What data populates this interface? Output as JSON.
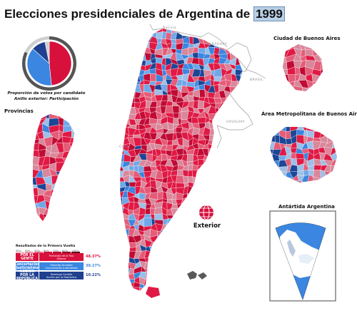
{
  "title": {
    "text": "Elecciones presidenciales de Argentina de",
    "year": "1999"
  },
  "pie": {
    "caption_line1": "Proporción de votos por candidato",
    "caption_line2": "Anillo exterior: Participación",
    "slices": [
      {
        "candidate": "Fernando de la Rúa",
        "share": 48.37,
        "color": "#d8103c"
      },
      {
        "candidate": "Eduardo Duhalde",
        "share": 38.27,
        "color": "#3a86e0"
      },
      {
        "candidate": "Domingo Cavallo",
        "share": 10.22,
        "color": "#1f3f8f"
      },
      {
        "candidate": "Otros",
        "share": 3.14,
        "color": "#d0d0d0"
      }
    ],
    "turnout_ring_color": "#555555",
    "turnout_gap_color": "#cfcfcf"
  },
  "labels": {
    "provincias": "Provincias",
    "caba": "Ciudad de Buenos Aires",
    "amba": "Área Metropolitana de Buenos Aires",
    "antartida": "Antártida Argentina",
    "exterior": "Exterior"
  },
  "countries": {
    "bolivia": "Bolivia",
    "paraguay": "PARAGUAY",
    "brasil": "BRASIL",
    "uruguay": "URUGUAY",
    "chile": "Chile"
  },
  "results": {
    "title": "Resultados de la Primera Vuelta",
    "scale": [
      "30%",
      "40%",
      "50%",
      "60%",
      "70%",
      "80%",
      "+90%"
    ],
    "rows": [
      {
        "party": "POR EL GENTE",
        "candidate": "Fernando de la Rúa",
        "subtitle": "Alianza",
        "pct": "48.37%",
        "color": "#d8103c",
        "pct_color": "#d8103c"
      },
      {
        "party": "Concertación Justicialista",
        "candidate": "Eduardo Duhalde",
        "subtitle": "Concertación Justicialista",
        "pct": "38.27%",
        "color": "#3a86e0",
        "pct_color": "#3a86e0"
      },
      {
        "party": "ACCION POR LA REPÚBLICA",
        "candidate": "Domingo Cavallo",
        "subtitle": "Acción por la República",
        "pct": "10.22%",
        "color": "#1f3f8f",
        "pct_color": "#1f3f8f"
      }
    ]
  },
  "palette": {
    "red_dark": "#c00b35",
    "red": "#e01a45",
    "red_light": "#e45c78",
    "red_pale": "#d9879b",
    "blue_dark": "#1c4696",
    "blue": "#3a86e0",
    "blue_light": "#6fa8e8",
    "blue_pale": "#9bbfe8",
    "sea": "#3a86e0",
    "frame": "#444444"
  }
}
